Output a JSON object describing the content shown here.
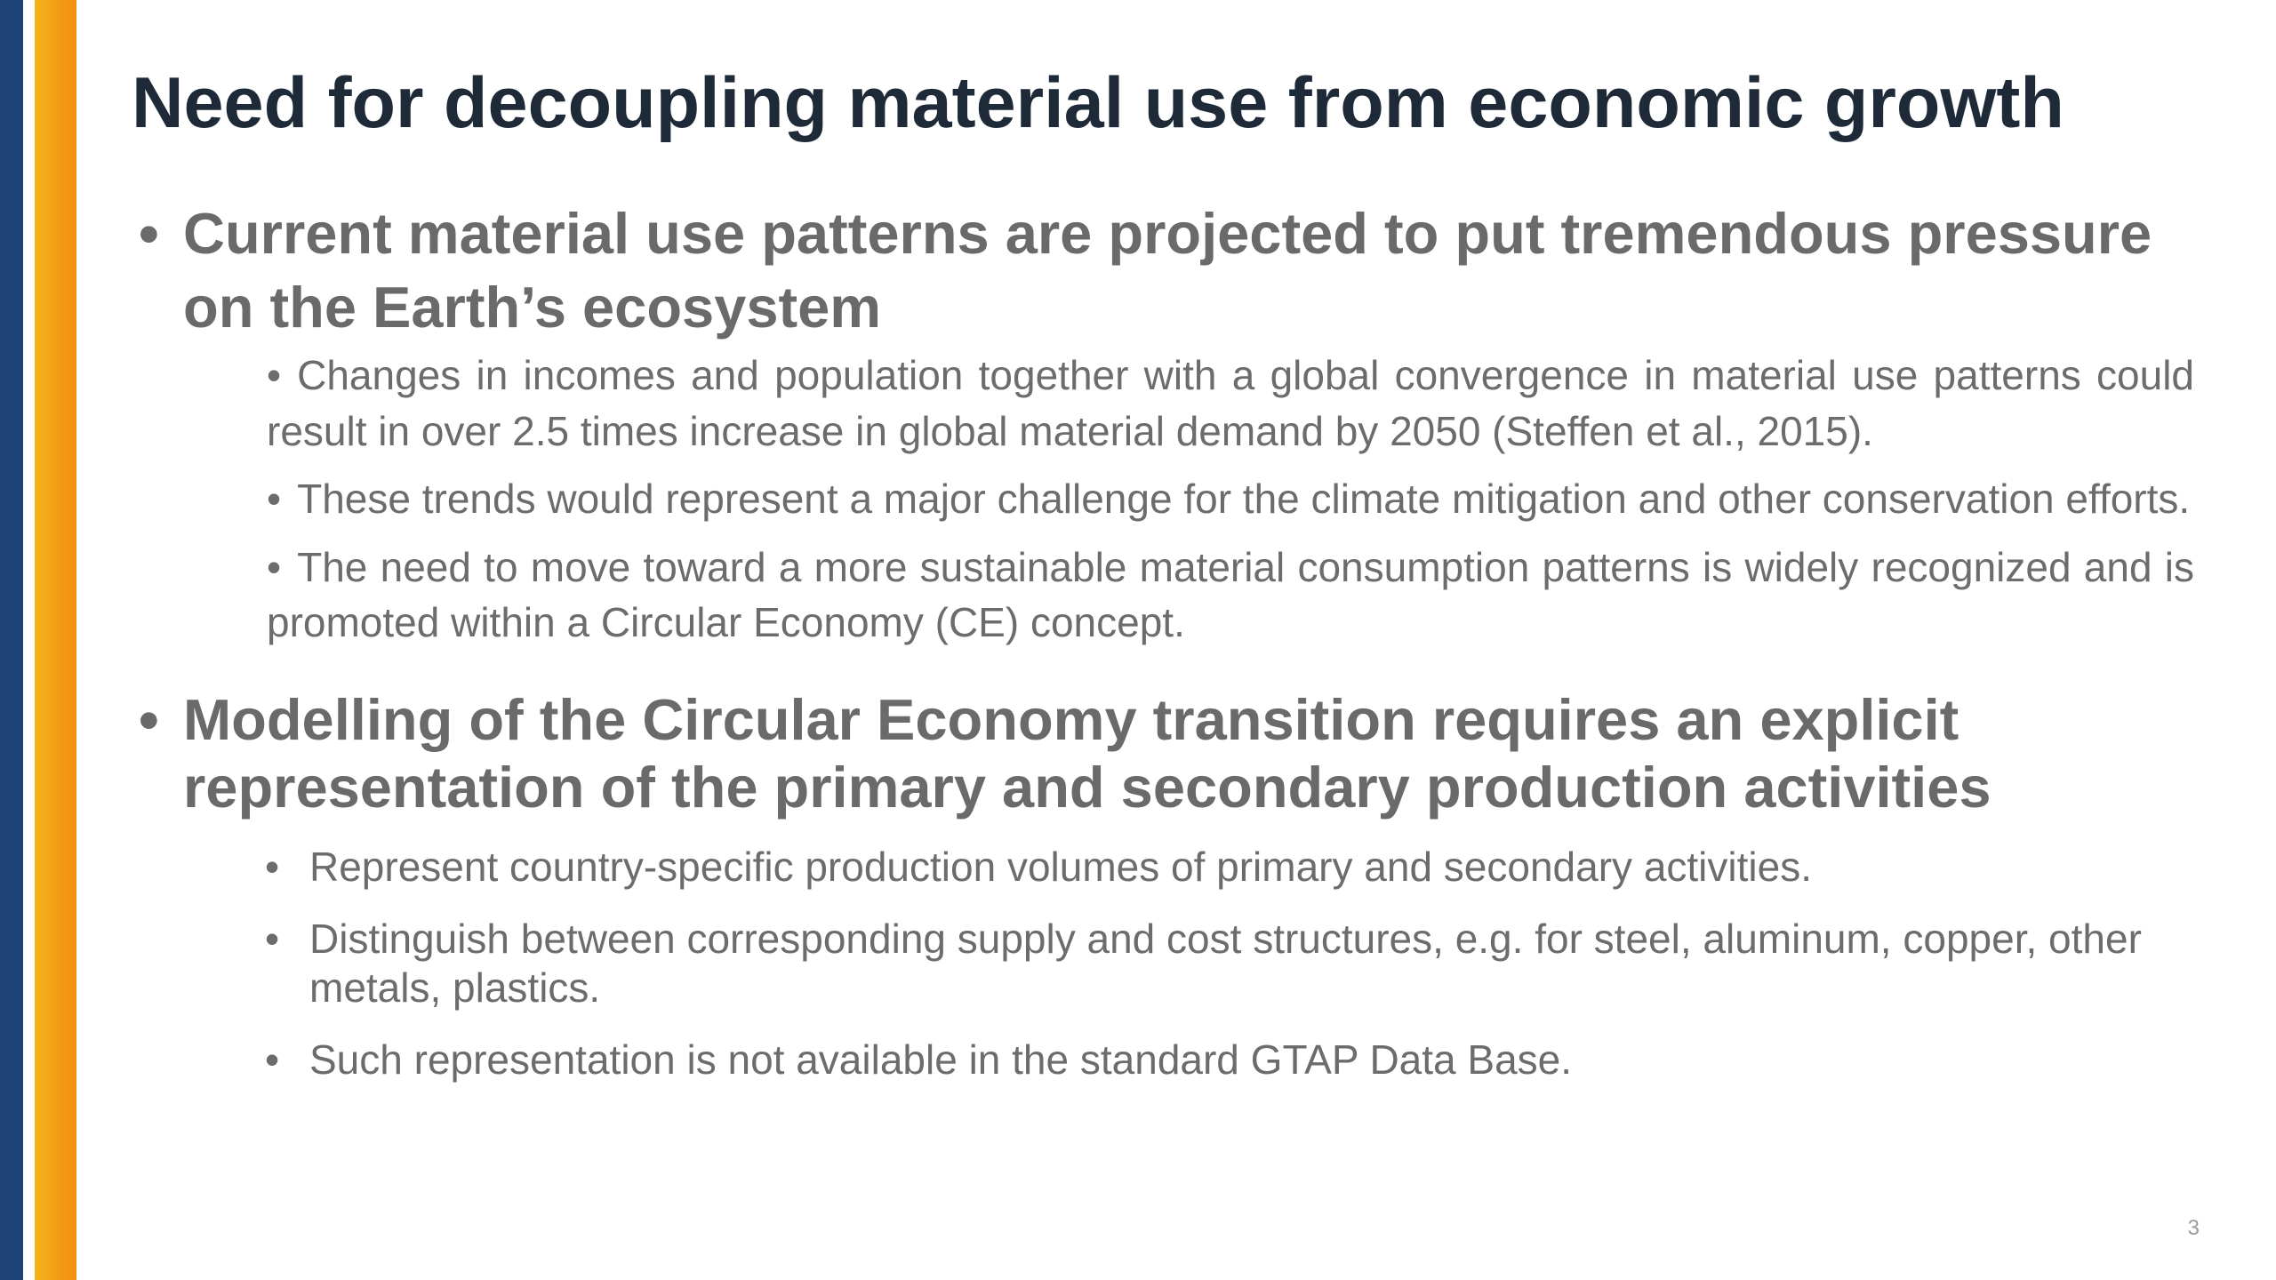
{
  "slide": {
    "title": "Need for decoupling material use from economic growth",
    "bullet_glyph": "•",
    "sections": [
      {
        "heading": "Current material use patterns are projected to put tremendous pressure on the Earth’s ecosystem",
        "items": [
          "Changes in incomes and population together with a global convergence in material use patterns could result in over 2.5 times increase in global material demand by 2050 (Steffen et al., 2015).",
          "These trends would represent a major challenge for the climate mitigation and other conservation efforts.",
          "The need to move toward a more sustainable material consumption patterns is widely recognized and is promoted within a Circular Economy (CE) concept."
        ]
      },
      {
        "heading": "Modelling of the Circular Economy transition requires an explicit representation of the primary and secondary production activities",
        "items": [
          "Represent country-specific production volumes of primary and secondary activities.",
          "Distinguish between corresponding supply and cost structures, e.g. for steel, aluminum, copper, other metals, plastics.",
          "Such representation is not available in the standard GTAP Data Base."
        ]
      }
    ],
    "page_number": "3",
    "colors": {
      "accent_blue": "#1d4276",
      "accent_orange": "#f39c16",
      "title_text": "#1f2a38",
      "body_text": "#6a6a6a"
    }
  }
}
